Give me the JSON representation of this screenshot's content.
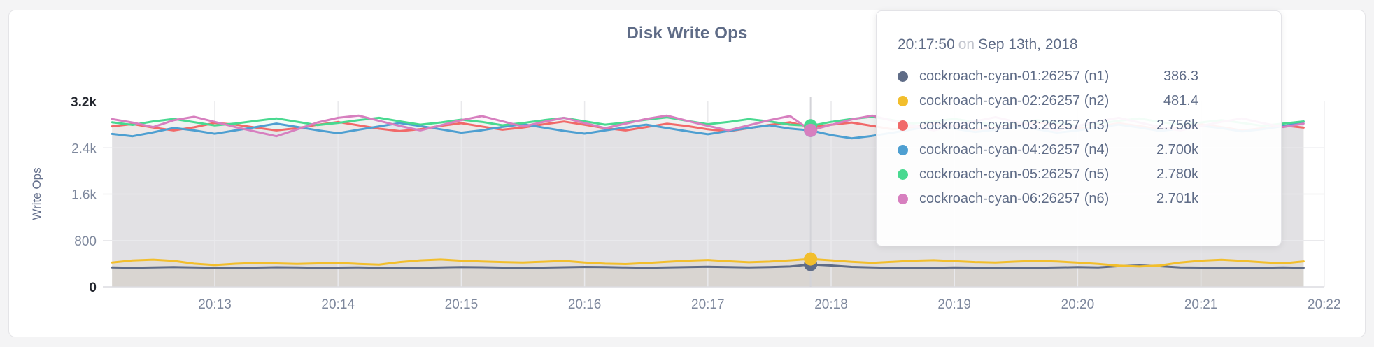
{
  "page": {
    "title": "Disk Write Ops"
  },
  "chart_data": {
    "type": "line",
    "title": "Disk Write Ops",
    "xlabel": "",
    "ylabel": "Write Ops",
    "ylim": [
      0,
      3200
    ],
    "grid": true,
    "legend_position": "tooltip",
    "y_ticks": [
      {
        "value": 0,
        "label": "0",
        "emph": true
      },
      {
        "value": 800,
        "label": "800",
        "emph": false
      },
      {
        "value": 1600,
        "label": "1.6k",
        "emph": false
      },
      {
        "value": 2400,
        "label": "2.4k",
        "emph": false
      },
      {
        "value": 3200,
        "label": "3.2k",
        "emph": true
      }
    ],
    "x_ticks": [
      "20:13",
      "20:14",
      "20:15",
      "20:16",
      "20:17",
      "20:18",
      "20:19",
      "20:20",
      "20:21",
      "20:22"
    ],
    "x_start": "20:12:10",
    "x_step_seconds": 10,
    "hover": {
      "index": 34,
      "time": "20:17:50",
      "conjunction": "on",
      "date": "Sep 13th, 2018"
    },
    "series": [
      {
        "name": "cockroach-cyan-01:26257 (n1)",
        "id": "n1",
        "color": "#5F6C87",
        "hover_value": "386.3",
        "values": [
          336,
          330,
          334,
          340,
          336,
          330,
          326,
          332,
          338,
          334,
          328,
          332,
          336,
          330,
          326,
          330,
          336,
          342,
          338,
          332,
          328,
          332,
          338,
          344,
          340,
          334,
          330,
          334,
          340,
          346,
          342,
          336,
          340,
          352,
          386.3,
          368,
          344,
          334,
          328,
          324,
          330,
          336,
          332,
          326,
          322,
          328,
          334,
          340,
          336,
          358,
          368,
          356,
          336,
          332,
          328,
          324,
          330,
          334,
          330
        ]
      },
      {
        "name": "cockroach-cyan-02:26257 (n2)",
        "id": "n2",
        "color": "#F2BE2C",
        "hover_value": "481.4",
        "values": [
          420,
          456,
          470,
          448,
          400,
          376,
          398,
          412,
          404,
          396,
          404,
          412,
          396,
          384,
          428,
          458,
          472,
          452,
          438,
          428,
          420,
          434,
          448,
          420,
          400,
          392,
          410,
          432,
          452,
          464,
          442,
          424,
          436,
          458,
          481.4,
          458,
          432,
          414,
          432,
          452,
          460,
          444,
          428,
          420,
          436,
          448,
          438,
          418,
          396,
          366,
          352,
          368,
          420,
          452,
          468,
          448,
          424,
          404,
          440
        ]
      },
      {
        "name": "cockroach-cyan-03:26257 (n3)",
        "id": "n3",
        "color": "#F16969",
        "hover_value": "2.756k",
        "values": [
          2770,
          2810,
          2750,
          2700,
          2754,
          2830,
          2800,
          2748,
          2700,
          2740,
          2798,
          2846,
          2788,
          2730,
          2688,
          2722,
          2778,
          2826,
          2768,
          2712,
          2750,
          2806,
          2854,
          2798,
          2740,
          2700,
          2758,
          2816,
          2776,
          2720,
          2684,
          2740,
          2796,
          2840,
          2756,
          2798,
          2836,
          2778,
          2720,
          2758,
          2814,
          2768,
          2712,
          2748,
          2798,
          2844,
          2786,
          2730,
          2768,
          2824,
          2776,
          2720,
          2756,
          2806,
          2758,
          2700,
          2738,
          2786,
          2748
        ]
      },
      {
        "name": "cockroach-cyan-04:26257 (n4)",
        "id": "n4",
        "color": "#4E9FD1",
        "hover_value": "2.700k",
        "values": [
          2640,
          2600,
          2668,
          2744,
          2700,
          2642,
          2700,
          2758,
          2818,
          2760,
          2702,
          2652,
          2712,
          2770,
          2828,
          2776,
          2720,
          2662,
          2702,
          2760,
          2808,
          2750,
          2692,
          2644,
          2700,
          2752,
          2800,
          2742,
          2686,
          2634,
          2692,
          2742,
          2788,
          2732,
          2700,
          2620,
          2564,
          2606,
          2662,
          2722,
          2780,
          2730,
          2672,
          2712,
          2768,
          2722,
          2662,
          2700,
          2752,
          2800,
          2750,
          2692,
          2730,
          2780,
          2740,
          2682,
          2722,
          2772,
          2848
        ]
      },
      {
        "name": "cockroach-cyan-05:26257 (n5)",
        "id": "n5",
        "color": "#49D990",
        "hover_value": "2.780k",
        "values": [
          2840,
          2796,
          2856,
          2898,
          2842,
          2786,
          2820,
          2866,
          2908,
          2850,
          2792,
          2830,
          2878,
          2918,
          2858,
          2800,
          2838,
          2886,
          2848,
          2790,
          2828,
          2876,
          2916,
          2858,
          2800,
          2838,
          2886,
          2926,
          2866,
          2808,
          2846,
          2896,
          2856,
          2800,
          2780,
          2848,
          2898,
          2936,
          2878,
          2820,
          2858,
          2898,
          2848,
          2790,
          2828,
          2876,
          2838,
          2780,
          2818,
          2866,
          2906,
          2848,
          2798,
          2838,
          2878,
          2830,
          2780,
          2818,
          2856
        ]
      },
      {
        "name": "cockroach-cyan-06:26257 (n6)",
        "id": "n6",
        "color": "#D77FBF",
        "hover_value": "2.701k",
        "values": [
          2896,
          2836,
          2758,
          2876,
          2936,
          2848,
          2758,
          2678,
          2600,
          2718,
          2838,
          2918,
          2956,
          2866,
          2778,
          2700,
          2788,
          2878,
          2948,
          2858,
          2768,
          2848,
          2918,
          2828,
          2740,
          2818,
          2898,
          2956,
          2866,
          2778,
          2702,
          2790,
          2878,
          2948,
          2701,
          2798,
          2888,
          2956,
          2866,
          2778,
          2700,
          2788,
          2858,
          2928,
          2848,
          2768,
          2700,
          2778,
          2858,
          2918,
          2838,
          2758,
          2700,
          2778,
          2848,
          2908,
          2828,
          2758,
          2818
        ]
      }
    ]
  }
}
